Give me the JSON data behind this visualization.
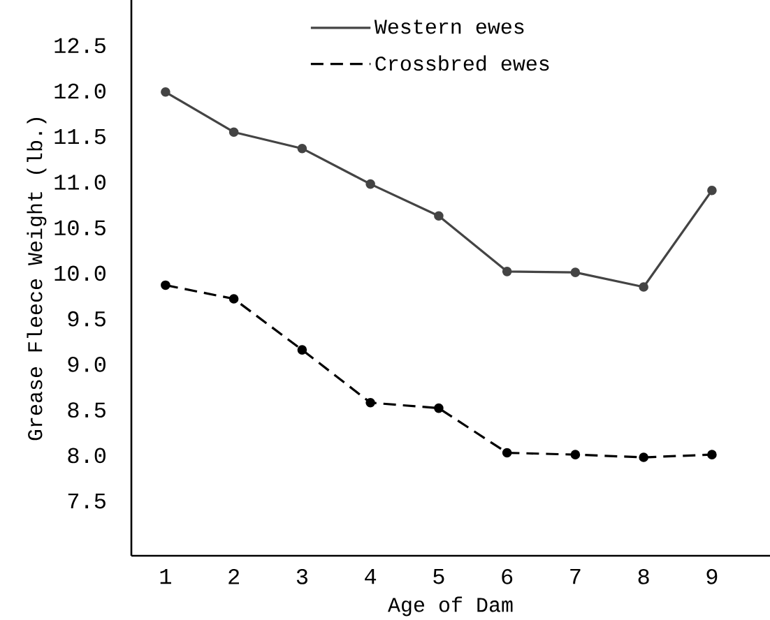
{
  "chart_data": {
    "type": "line",
    "xlabel": "Age of Dam",
    "ylabel": "Grease Fleece Weight (lb.)",
    "x": [
      1,
      2,
      3,
      4,
      5,
      6,
      7,
      8,
      9
    ],
    "series": [
      {
        "name": "Western ewes",
        "color": "#444444",
        "line_style": "solid",
        "values": [
          11.99,
          11.55,
          11.37,
          10.98,
          10.63,
          10.02,
          10.01,
          9.85,
          10.91
        ]
      },
      {
        "name": "Crossbred ewes",
        "color": "#000000",
        "line_style": "dashed",
        "values": [
          9.87,
          9.72,
          9.16,
          8.58,
          8.52,
          8.03,
          8.01,
          7.98,
          8.01
        ]
      }
    ],
    "xlim": [
      0.5,
      9.85
    ],
    "ylim": [
      6.9,
      13.0
    ],
    "xticks": [
      1,
      2,
      3,
      4,
      5,
      6,
      7,
      8,
      9
    ],
    "yticks": [
      7.5,
      {
        "value": 8,
        "label": "8.0"
      },
      8.5,
      {
        "value": 9,
        "label": "9.0"
      },
      9.5,
      {
        "value": 10,
        "label": "10.0"
      },
      10.5,
      {
        "value": 11,
        "label": "11.0"
      },
      11.5,
      {
        "value": 12,
        "label": "12.0"
      },
      12.5
    ],
    "marker": "circle",
    "grid": false,
    "legend": "top"
  }
}
